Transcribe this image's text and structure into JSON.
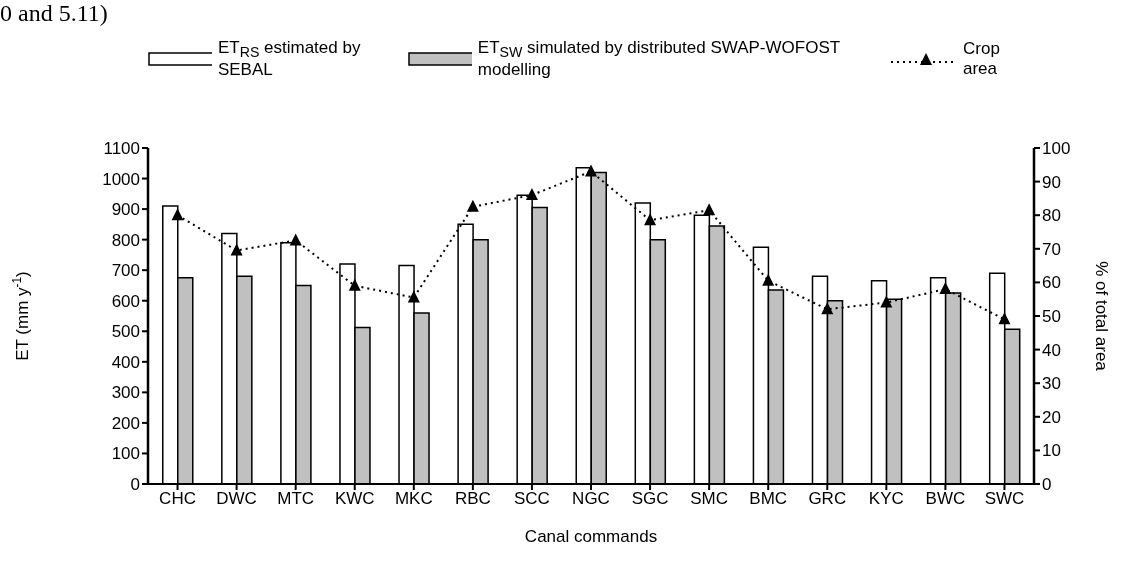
{
  "chart_data": {
    "type": "bar",
    "annotations": [
      "0 and 5.11)"
    ],
    "xlabel": "Canal commands",
    "ylabel": "ET (mm y$^{-1}$)",
    "y2label": "% of total area",
    "categories": [
      "CHC",
      "DWC",
      "MTC",
      "KWC",
      "MKC",
      "RBC",
      "SCC",
      "NGC",
      "SGC",
      "SMC",
      "BMC",
      "GRC",
      "KYC",
      "BWC",
      "SWC"
    ],
    "series": [
      {
        "name": "ET$_{RS}$ estimated by SEBAL",
        "color": "#ffffff",
        "values": [
          910,
          820,
          790,
          720,
          715,
          850,
          945,
          1035,
          920,
          880,
          775,
          680,
          665,
          675,
          690
        ]
      },
      {
        "name": "ET$_{SW}$ simulated by distributed SWAP-WOFOST modelling",
        "color": "#c0c0c0",
        "values": [
          675,
          680,
          650,
          512,
          560,
          800,
          905,
          1020,
          800,
          845,
          635,
          600,
          605,
          625,
          507
        ]
      },
      {
        "name": "Crop area",
        "type": "line",
        "axis": "y2",
        "color": "#000000",
        "marker": "triangle",
        "line_style": "dotted",
        "values": [
          80,
          69.5,
          72.5,
          59,
          55.5,
          82.5,
          86,
          93,
          78.5,
          81.5,
          60.5,
          52,
          54,
          58,
          49
        ]
      }
    ],
    "ylim": [
      0,
      1100
    ],
    "yticks": [
      0,
      100,
      200,
      300,
      400,
      500,
      600,
      700,
      800,
      900,
      1000,
      1100
    ],
    "y2lim": [
      0,
      100
    ],
    "y2ticks": [
      0,
      10,
      20,
      30,
      40,
      50,
      60,
      70,
      80,
      90,
      100
    ],
    "grid": false,
    "legend": "top"
  }
}
